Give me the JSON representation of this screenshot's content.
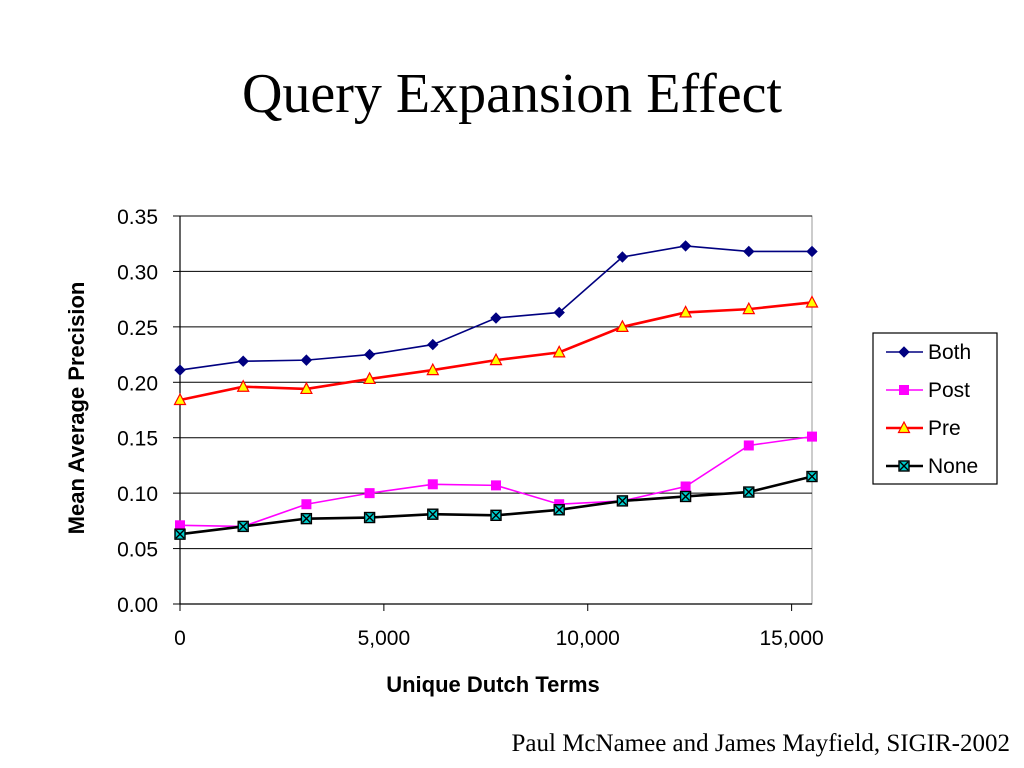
{
  "slide": {
    "title": "Query Expansion Effect",
    "footer": "Paul McNamee and James Mayfield, SIGIR-2002"
  },
  "chart_data": {
    "type": "line",
    "title": "",
    "xlabel": "Unique Dutch Terms",
    "ylabel": "Mean Average Precision",
    "xlim": [
      0,
      15500
    ],
    "ylim": [
      0,
      0.35
    ],
    "x_ticks": [
      0,
      5000,
      10000,
      15000
    ],
    "x_tick_labels": [
      "0",
      "5,000",
      "10,000",
      "15,000"
    ],
    "y_ticks": [
      0,
      0.05,
      0.1,
      0.15,
      0.2,
      0.25,
      0.3,
      0.35
    ],
    "y_tick_labels": [
      "0.00",
      "0.05",
      "0.10",
      "0.15",
      "0.20",
      "0.25",
      "0.30",
      "0.35"
    ],
    "grid": "horizontal",
    "legend_position": "right",
    "x": [
      0,
      1550,
      3100,
      4650,
      6200,
      7750,
      9300,
      10850,
      12400,
      13950,
      15500
    ],
    "series": [
      {
        "name": "Both",
        "color": "#000080",
        "marker": "diamond",
        "values": [
          0.211,
          0.219,
          0.22,
          0.225,
          0.234,
          0.258,
          0.263,
          0.313,
          0.323,
          0.318,
          0.318
        ]
      },
      {
        "name": "Post",
        "color": "#ff00ff",
        "marker": "square",
        "values": [
          0.071,
          0.07,
          0.09,
          0.1,
          0.108,
          0.107,
          0.09,
          0.093,
          0.106,
          0.143,
          0.151
        ]
      },
      {
        "name": "Pre",
        "color": "#ff0000",
        "marker": "triangle",
        "marker_fill": "#ffff00",
        "values": [
          0.184,
          0.196,
          0.194,
          0.203,
          0.211,
          0.22,
          0.227,
          0.25,
          0.263,
          0.266,
          0.272
        ]
      },
      {
        "name": "None",
        "color": "#000000",
        "marker": "x-square",
        "marker_fill": "#00cccc",
        "values": [
          0.063,
          0.07,
          0.077,
          0.078,
          0.081,
          0.08,
          0.085,
          0.093,
          0.097,
          0.101,
          0.115
        ]
      }
    ]
  }
}
